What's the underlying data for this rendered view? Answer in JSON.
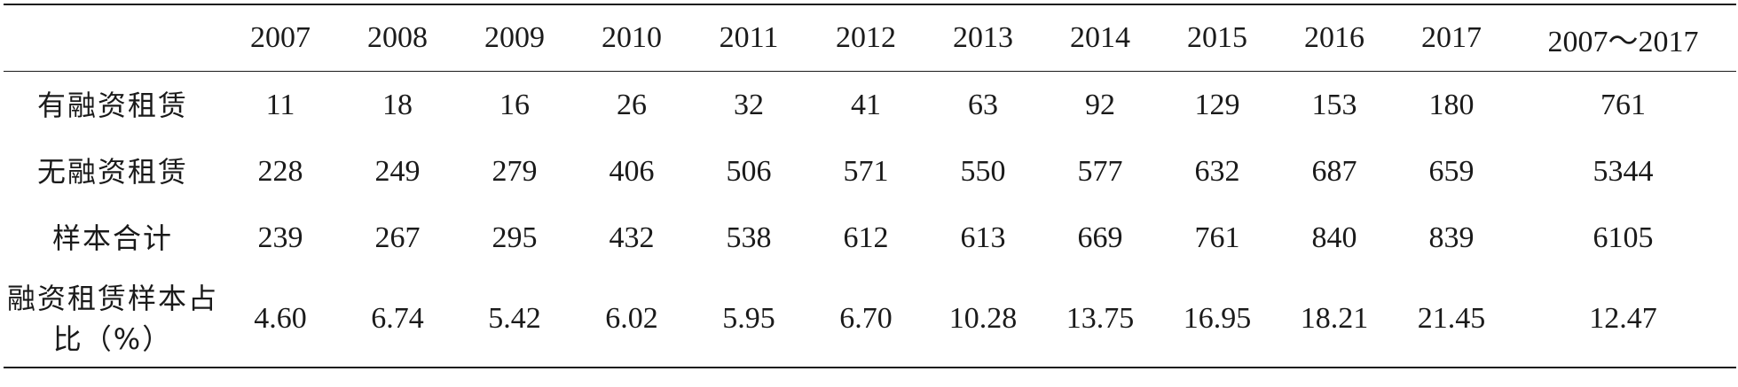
{
  "table": {
    "headers": [
      "",
      "2007",
      "2008",
      "2009",
      "2010",
      "2011",
      "2012",
      "2013",
      "2014",
      "2015",
      "2016",
      "2017",
      "2007～2017"
    ],
    "rows": [
      {
        "label": "有融资租赁",
        "cells": [
          "11",
          "18",
          "16",
          "26",
          "32",
          "41",
          "63",
          "92",
          "129",
          "153",
          "180",
          "761"
        ]
      },
      {
        "label": "无融资租赁",
        "cells": [
          "228",
          "249",
          "279",
          "406",
          "506",
          "571",
          "550",
          "577",
          "632",
          "687",
          "659",
          "5344"
        ]
      },
      {
        "label": "样本合计",
        "cells": [
          "239",
          "267",
          "295",
          "432",
          "538",
          "612",
          "613",
          "669",
          "761",
          "840",
          "839",
          "6105"
        ]
      },
      {
        "label": "融资租赁样本占比（%）",
        "cells": [
          "4.60",
          "6.74",
          "5.42",
          "6.02",
          "5.95",
          "6.70",
          "10.28",
          "13.75",
          "16.95",
          "18.21",
          "21.45",
          "12.47"
        ]
      }
    ]
  }
}
